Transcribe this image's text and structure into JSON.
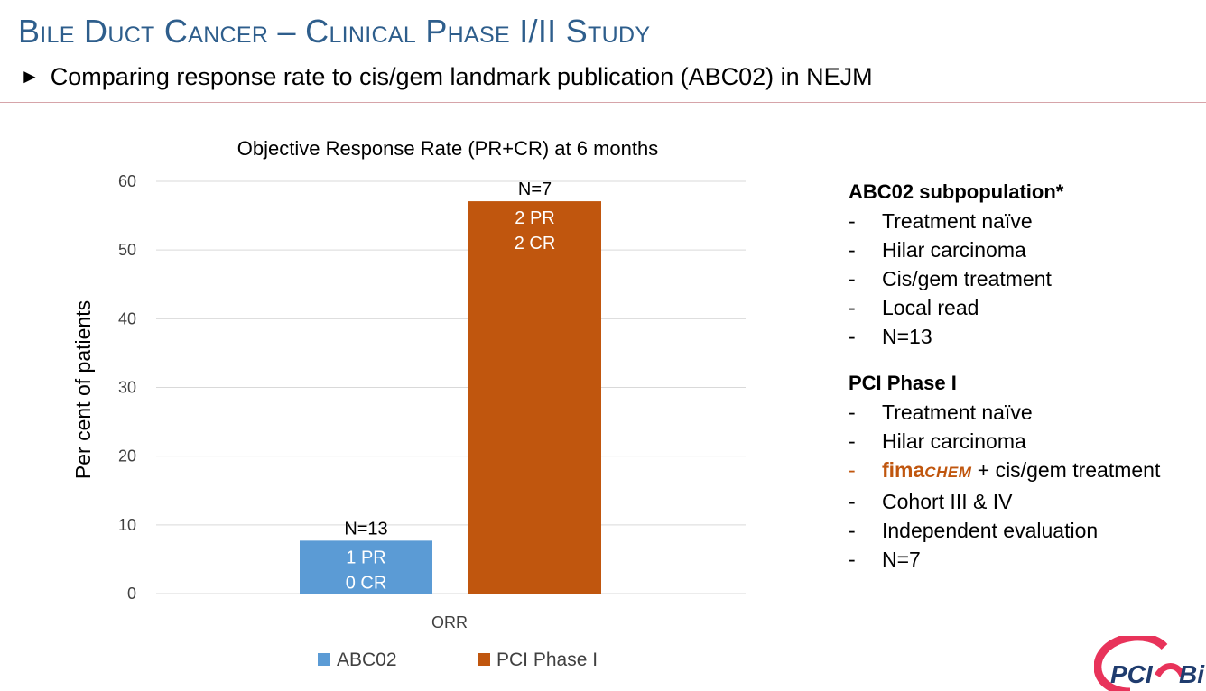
{
  "slide": {
    "title": "Bile Duct Cancer – Clinical Phase I/II Study",
    "subtitle_arrow": "►",
    "subtitle": "Comparing response rate to cis/gem landmark publication (ABC02) in NEJM"
  },
  "chart_data": {
    "type": "bar",
    "title": "Objective Response Rate (PR+CR) at 6 months",
    "xlabel": "",
    "ylabel": "Per cent of patients",
    "ylim": [
      0,
      60
    ],
    "yticks": [
      0,
      10,
      20,
      30,
      40,
      50,
      60
    ],
    "categories": [
      "ORR"
    ],
    "grid": true,
    "legend_position": "bottom",
    "series": [
      {
        "name": "ABC02",
        "values": [
          7.7
        ],
        "color": "#5B9BD5",
        "n_label": "N=13",
        "inner_labels": [
          "1 PR",
          "0 CR"
        ]
      },
      {
        "name": "PCI Phase I",
        "values": [
          57.1
        ],
        "color": "#C0560E",
        "n_label": "N=7",
        "inner_labels": [
          "2 PR",
          "2 CR"
        ]
      }
    ]
  },
  "notes": {
    "group1": {
      "heading": "ABC02 subpopulation*",
      "items": [
        "Treatment naïve",
        "Hilar carcinoma",
        "Cis/gem treatment",
        "Local read",
        "N=13"
      ]
    },
    "group2": {
      "heading": "PCI Phase I",
      "items_before": [
        "Treatment naïve",
        "Hilar carcinoma"
      ],
      "fima_item": {
        "brand_prefix": "fima",
        "brand_suffix": "CHEM",
        "rest": " + cis/gem treatment"
      },
      "items_after": [
        "Cohort III & IV",
        "Independent evaluation",
        "N=7"
      ]
    },
    "dash": "-"
  },
  "logo": {
    "text_left": "PCI",
    "text_right": "Bi",
    "colors": {
      "ring": "#E8335A",
      "text": "#1F3C6E"
    }
  }
}
